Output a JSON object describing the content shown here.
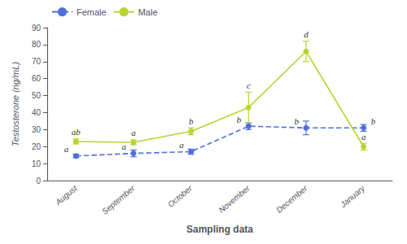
{
  "chart_data": {
    "type": "line",
    "xlabel": "Sampling data",
    "ylabel": "Testosterone (ng/mL)",
    "categories": [
      "August",
      "September",
      "October",
      "November",
      "December",
      "January"
    ],
    "series": [
      {
        "name": "Female",
        "values": [
          14.5,
          16,
          17,
          32,
          31,
          31
        ],
        "errors": [
          1.0,
          2,
          1.5,
          2,
          4,
          2
        ],
        "labels": [
          "a",
          "a",
          "a",
          "b",
          "b",
          "b"
        ],
        "line_style": "dashed",
        "marker": "circle"
      },
      {
        "name": "Male",
        "values": [
          23,
          22.5,
          29,
          43,
          76,
          20
        ],
        "errors": [
          1.5,
          1.5,
          2,
          9,
          6,
          2
        ],
        "labels": [
          "ab",
          "a",
          "b",
          "c",
          "d",
          "a"
        ],
        "line_style": "solid",
        "marker": "circle"
      }
    ],
    "ylim": [
      0,
      90
    ],
    "yticks": [
      0,
      10,
      20,
      30,
      40,
      50,
      60,
      70,
      80,
      90
    ],
    "grid": false,
    "legend": "upper left"
  }
}
